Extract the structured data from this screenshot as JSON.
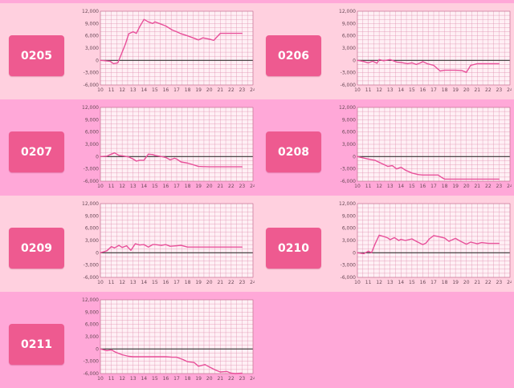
{
  "colors": {
    "page_bg": "#ffa8d8",
    "cell_light": "#ffd0df",
    "cell_dark": "#ffa8d8",
    "button": "#ee5a90",
    "plot_bg": "#fff0f5",
    "grid": "#e090b0",
    "series": "#e8509a",
    "zero_line": "#333333"
  },
  "chart_data": [
    {
      "type": "line",
      "label": "0205",
      "yticks": [
        "12,000",
        "9,000",
        "6,000",
        "3,000",
        "0",
        "-3,000",
        "-6,000"
      ],
      "xticks": [
        "10",
        "11",
        "12",
        "13",
        "14",
        "15",
        "16",
        "17",
        "18",
        "19",
        "20",
        "21",
        "22",
        "23",
        "24"
      ],
      "xlim": [
        10,
        24
      ],
      "ylim": [
        -6000,
        12000
      ],
      "grid": true,
      "points": [
        [
          10,
          0
        ],
        [
          10.9,
          -200
        ],
        [
          11.2,
          -800
        ],
        [
          11.6,
          -600
        ],
        [
          12,
          2000
        ],
        [
          12.3,
          4000
        ],
        [
          12.6,
          6500
        ],
        [
          13,
          7000
        ],
        [
          13.3,
          6600
        ],
        [
          13.6,
          8200
        ],
        [
          14,
          10000
        ],
        [
          14.4,
          9400
        ],
        [
          14.8,
          9000
        ],
        [
          15,
          9400
        ],
        [
          15.4,
          9000
        ],
        [
          16,
          8400
        ],
        [
          16.6,
          7400
        ],
        [
          17,
          7000
        ],
        [
          17.4,
          6500
        ],
        [
          18,
          6000
        ],
        [
          18.6,
          5400
        ],
        [
          19,
          5000
        ],
        [
          19.4,
          5500
        ],
        [
          20,
          5200
        ],
        [
          20.4,
          4900
        ],
        [
          21,
          6600
        ],
        [
          23,
          6600
        ]
      ]
    },
    {
      "type": "line",
      "label": "0206",
      "yticks": [
        "12,000",
        "9,000",
        "6,000",
        "3,000",
        "0",
        "-3,000",
        "-6,000"
      ],
      "xticks": [
        "10",
        "11",
        "12",
        "13",
        "14",
        "15",
        "16",
        "17",
        "18",
        "19",
        "20",
        "21",
        "22",
        "23",
        "24"
      ],
      "xlim": [
        10,
        24
      ],
      "ylim": [
        -6000,
        12000
      ],
      "grid": true,
      "points": [
        [
          10,
          0
        ],
        [
          10.5,
          -200
        ],
        [
          11,
          -600
        ],
        [
          11.4,
          -200
        ],
        [
          11.8,
          -700
        ],
        [
          12,
          200
        ],
        [
          12.4,
          -100
        ],
        [
          13,
          200
        ],
        [
          13.6,
          -400
        ],
        [
          14,
          -500
        ],
        [
          14.6,
          -800
        ],
        [
          15,
          -600
        ],
        [
          15.4,
          -1000
        ],
        [
          15.8,
          -600
        ],
        [
          16,
          -300
        ],
        [
          16.4,
          -800
        ],
        [
          17,
          -1200
        ],
        [
          17.6,
          -2600
        ],
        [
          18,
          -2400
        ],
        [
          19,
          -2400
        ],
        [
          19.6,
          -2500
        ],
        [
          20,
          -2900
        ],
        [
          20.4,
          -1200
        ],
        [
          21,
          -800
        ],
        [
          23,
          -800
        ]
      ]
    },
    {
      "type": "line",
      "label": "0207",
      "yticks": [
        "12,000",
        "9,000",
        "6,000",
        "3,000",
        "0",
        "-3,000",
        "-6,000"
      ],
      "xticks": [
        "10",
        "11",
        "12",
        "13",
        "14",
        "15",
        "16",
        "17",
        "18",
        "19",
        "20",
        "21",
        "22",
        "23",
        "24"
      ],
      "xlim": [
        10,
        24
      ],
      "ylim": [
        -6000,
        12000
      ],
      "grid": true,
      "points": [
        [
          10,
          0
        ],
        [
          10.6,
          100
        ],
        [
          11,
          600
        ],
        [
          11.3,
          900
        ],
        [
          11.7,
          300
        ],
        [
          12,
          200
        ],
        [
          12.6,
          -100
        ],
        [
          13,
          -600
        ],
        [
          13.3,
          -1100
        ],
        [
          13.6,
          -900
        ],
        [
          14,
          -900
        ],
        [
          14.4,
          600
        ],
        [
          14.8,
          500
        ],
        [
          15,
          300
        ],
        [
          15.4,
          100
        ],
        [
          15.8,
          -100
        ],
        [
          16,
          -200
        ],
        [
          16.4,
          -800
        ],
        [
          16.8,
          -400
        ],
        [
          17,
          -600
        ],
        [
          17.4,
          -1300
        ],
        [
          18,
          -1600
        ],
        [
          18.4,
          -1900
        ],
        [
          19,
          -2400
        ],
        [
          20,
          -2500
        ],
        [
          21,
          -2500
        ],
        [
          23,
          -2500
        ]
      ]
    },
    {
      "type": "line",
      "label": "0208",
      "yticks": [
        "12,000",
        "9,000",
        "6,000",
        "3,000",
        "0",
        "-3,000",
        "-6,000"
      ],
      "xticks": [
        "10",
        "11",
        "12",
        "13",
        "14",
        "15",
        "16",
        "17",
        "18",
        "19",
        "20",
        "21",
        "22",
        "23",
        "24"
      ],
      "xlim": [
        10,
        24
      ],
      "ylim": [
        -6000,
        12000
      ],
      "grid": true,
      "points": [
        [
          10,
          0
        ],
        [
          11,
          -600
        ],
        [
          11.6,
          -900
        ],
        [
          12,
          -1400
        ],
        [
          12.4,
          -1900
        ],
        [
          12.8,
          -2400
        ],
        [
          13.2,
          -2200
        ],
        [
          13.6,
          -3000
        ],
        [
          14,
          -2600
        ],
        [
          14.4,
          -3300
        ],
        [
          15,
          -4000
        ],
        [
          15.6,
          -4400
        ],
        [
          16,
          -4500
        ],
        [
          17,
          -4500
        ],
        [
          17.4,
          -4500
        ],
        [
          17.8,
          -5200
        ],
        [
          18,
          -5500
        ],
        [
          19,
          -5500
        ],
        [
          20,
          -5500
        ],
        [
          21,
          -5500
        ],
        [
          23,
          -5500
        ]
      ]
    },
    {
      "type": "line",
      "label": "0209",
      "yticks": [
        "12,000",
        "9,000",
        "6,000",
        "3,000",
        "0",
        "-3,000",
        "-6,000"
      ],
      "xticks": [
        "10",
        "11",
        "12",
        "13",
        "14",
        "15",
        "16",
        "17",
        "18",
        "19",
        "20",
        "21",
        "22",
        "23",
        "24"
      ],
      "xlim": [
        10,
        24
      ],
      "ylim": [
        -6000,
        12000
      ],
      "grid": true,
      "points": [
        [
          10,
          0
        ],
        [
          10.6,
          500
        ],
        [
          11,
          1500
        ],
        [
          11.3,
          1200
        ],
        [
          11.7,
          1800
        ],
        [
          12,
          1300
        ],
        [
          12.4,
          1700
        ],
        [
          12.8,
          600
        ],
        [
          13.2,
          2200
        ],
        [
          13.6,
          1900
        ],
        [
          14,
          2000
        ],
        [
          14.4,
          1400
        ],
        [
          14.8,
          2000
        ],
        [
          15,
          2000
        ],
        [
          15.6,
          1800
        ],
        [
          16,
          2000
        ],
        [
          16.4,
          1600
        ],
        [
          17,
          1700
        ],
        [
          17.4,
          1800
        ],
        [
          18,
          1400
        ],
        [
          19,
          1400
        ],
        [
          20,
          1400
        ],
        [
          21,
          1400
        ],
        [
          22,
          1400
        ],
        [
          23,
          1400
        ]
      ]
    },
    {
      "type": "line",
      "label": "0210",
      "yticks": [
        "12,000",
        "9,000",
        "6,000",
        "3,000",
        "0",
        "-3,000",
        "-6,000"
      ],
      "xticks": [
        "10",
        "11",
        "12",
        "13",
        "14",
        "15",
        "16",
        "17",
        "18",
        "19",
        "20",
        "21",
        "22",
        "23",
        "24"
      ],
      "xlim": [
        10,
        24
      ],
      "ylim": [
        -6000,
        12000
      ],
      "grid": true,
      "points": [
        [
          10,
          0
        ],
        [
          10.6,
          -200
        ],
        [
          11,
          400
        ],
        [
          11.3,
          0
        ],
        [
          11.6,
          2000
        ],
        [
          12,
          4300
        ],
        [
          12.4,
          4000
        ],
        [
          12.8,
          3600
        ],
        [
          13,
          3200
        ],
        [
          13.4,
          3700
        ],
        [
          13.8,
          3000
        ],
        [
          14,
          3300
        ],
        [
          14.4,
          3000
        ],
        [
          15,
          3400
        ],
        [
          15.4,
          2800
        ],
        [
          16,
          2000
        ],
        [
          16.3,
          2400
        ],
        [
          16.6,
          3400
        ],
        [
          17,
          4200
        ],
        [
          17.4,
          4000
        ],
        [
          18,
          3600
        ],
        [
          18.4,
          2800
        ],
        [
          18.8,
          3300
        ],
        [
          19,
          3500
        ],
        [
          19.4,
          2900
        ],
        [
          20,
          2100
        ],
        [
          20.4,
          2600
        ],
        [
          21,
          2200
        ],
        [
          21.4,
          2500
        ],
        [
          22,
          2300
        ],
        [
          23,
          2300
        ]
      ]
    },
    {
      "type": "line",
      "label": "0211",
      "yticks": [
        "12,000",
        "9,000",
        "6,000",
        "3,000",
        "0",
        "-3,000",
        "-6,000"
      ],
      "xticks": [
        "10",
        "11",
        "12",
        "13",
        "14",
        "15",
        "16",
        "17",
        "18",
        "19",
        "20",
        "21",
        "22",
        "23",
        "24"
      ],
      "xlim": [
        10,
        24
      ],
      "ylim": [
        -6000,
        12000
      ],
      "grid": true,
      "points": [
        [
          10,
          0
        ],
        [
          10.6,
          -400
        ],
        [
          11,
          -200
        ],
        [
          11.4,
          -800
        ],
        [
          12,
          -1400
        ],
        [
          12.6,
          -1800
        ],
        [
          13,
          -1900
        ],
        [
          14,
          -1900
        ],
        [
          15,
          -1900
        ],
        [
          16,
          -1900
        ],
        [
          16.6,
          -2000
        ],
        [
          17,
          -2000
        ],
        [
          17.6,
          -2600
        ],
        [
          18,
          -3100
        ],
        [
          18.6,
          -3300
        ],
        [
          19,
          -4200
        ],
        [
          19.6,
          -3800
        ],
        [
          20,
          -4400
        ],
        [
          20.6,
          -5200
        ],
        [
          21,
          -5600
        ],
        [
          21.6,
          -5500
        ],
        [
          22,
          -5900
        ],
        [
          22.4,
          -6000
        ],
        [
          23,
          -5900
        ]
      ]
    }
  ]
}
